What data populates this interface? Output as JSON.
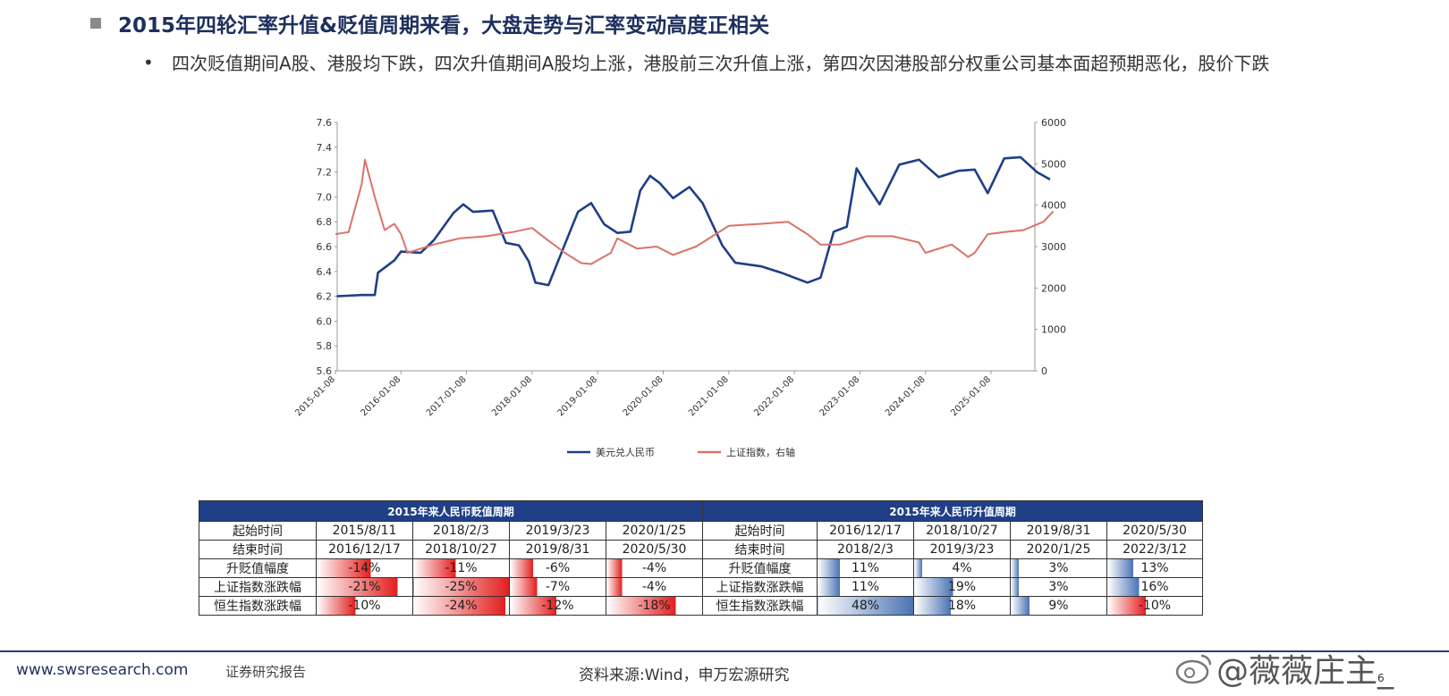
{
  "header": {
    "title": "2015年四轮汇率升值&贬值周期来看，大盘走势与汇率变动高度正相关",
    "bullet": "四次贬值期间A股、港股均下跌，四次升值期间A股均上涨，港股前三次升值上涨，第四次因港股部分权重公司基本面超预期恶化，股价下跌"
  },
  "chart_data": {
    "type": "line",
    "x_tick_labels": [
      "2015-01-08",
      "2016-01-08",
      "2017-01-08",
      "2018-01-08",
      "2019-01-08",
      "2020-01-08",
      "2021-01-08",
      "2022-01-08",
      "2023-01-08",
      "2024-01-08",
      "2025-01-08"
    ],
    "y_left": {
      "min": 5.6,
      "max": 7.6,
      "ticks": [
        "5.6",
        "5.8",
        "6.0",
        "6.2",
        "6.4",
        "6.6",
        "6.8",
        "7.0",
        "7.2",
        "7.4",
        "7.6"
      ]
    },
    "y_right": {
      "min": 0,
      "max": 6000,
      "ticks": [
        "0",
        "1000",
        "2000",
        "3000",
        "4000",
        "5000",
        "6000"
      ]
    },
    "legend_position": "bottom",
    "series": [
      {
        "name": "美元兑人民币",
        "color": "#1f3f86",
        "axis": "left",
        "x": [
          2015.02,
          2015.4,
          2015.6,
          2015.65,
          2015.9,
          2016.0,
          2016.3,
          2016.5,
          2016.8,
          2016.95,
          2017.1,
          2017.4,
          2017.6,
          2017.8,
          2017.95,
          2018.05,
          2018.25,
          2018.5,
          2018.7,
          2018.9,
          2019.1,
          2019.3,
          2019.5,
          2019.65,
          2019.8,
          2019.95,
          2020.15,
          2020.4,
          2020.6,
          2020.9,
          2021.1,
          2021.5,
          2021.8,
          2022.0,
          2022.2,
          2022.4,
          2022.6,
          2022.8,
          2022.95,
          2023.1,
          2023.3,
          2023.6,
          2023.9,
          2024.2,
          2024.5,
          2024.75,
          2024.95,
          2025.2,
          2025.45,
          2025.7,
          2025.9
        ],
        "y": [
          6.2,
          6.21,
          6.21,
          6.39,
          6.49,
          6.56,
          6.55,
          6.65,
          6.87,
          6.94,
          6.88,
          6.89,
          6.63,
          6.61,
          6.48,
          6.31,
          6.29,
          6.62,
          6.88,
          6.95,
          6.78,
          6.71,
          6.72,
          7.05,
          7.17,
          7.11,
          6.99,
          7.08,
          6.95,
          6.61,
          6.47,
          6.44,
          6.39,
          6.35,
          6.31,
          6.35,
          6.72,
          6.76,
          7.23,
          7.1,
          6.94,
          7.26,
          7.3,
          7.16,
          7.21,
          7.22,
          7.03,
          7.31,
          7.32,
          7.2,
          7.14
        ]
      },
      {
        "name": "上证指数，右轴",
        "color": "#d9736b",
        "axis": "right",
        "x": [
          2015.0,
          2015.2,
          2015.4,
          2015.45,
          2015.6,
          2015.75,
          2015.9,
          2016.0,
          2016.1,
          2016.3,
          2016.5,
          2016.9,
          2017.3,
          2017.7,
          2018.0,
          2018.2,
          2018.5,
          2018.75,
          2018.9,
          2019.2,
          2019.3,
          2019.6,
          2019.9,
          2020.15,
          2020.5,
          2020.8,
          2021.0,
          2021.5,
          2021.9,
          2022.2,
          2022.4,
          2022.7,
          2022.9,
          2023.1,
          2023.5,
          2023.9,
          2024.0,
          2024.4,
          2024.65,
          2024.75,
          2024.95,
          2025.2,
          2025.5,
          2025.8,
          2025.95
        ],
        "y": [
          3300,
          3350,
          4500,
          5100,
          4200,
          3400,
          3550,
          3300,
          2850,
          2950,
          3050,
          3200,
          3250,
          3350,
          3450,
          3200,
          2850,
          2600,
          2580,
          2850,
          3200,
          2950,
          3000,
          2800,
          3000,
          3300,
          3500,
          3550,
          3600,
          3300,
          3050,
          3050,
          3150,
          3250,
          3250,
          3100,
          2850,
          3050,
          2750,
          2850,
          3300,
          3350,
          3400,
          3600,
          3850
        ]
      }
    ]
  },
  "table": {
    "depreciation": {
      "title": "2015年来人民币贬值周期",
      "rows": [
        {
          "label": "起始时间",
          "values": [
            "2015/8/11",
            "2018/2/3",
            "2019/3/23",
            "2020/1/25"
          ]
        },
        {
          "label": "结束时间",
          "values": [
            "2016/12/17",
            "2018/10/27",
            "2019/8/31",
            "2020/5/30"
          ]
        },
        {
          "label": "升贬值幅度",
          "values": [
            "-14%",
            "-11%",
            "-6%",
            "-4%"
          ],
          "levels": [
            14,
            11,
            6,
            4
          ]
        },
        {
          "label": "上证指数涨跌幅",
          "values": [
            "-21%",
            "-25%",
            "-7%",
            "-4%"
          ],
          "levels": [
            21,
            25,
            7,
            4
          ]
        },
        {
          "label": "恒生指数涨跌幅",
          "values": [
            "-10%",
            "-24%",
            "-12%",
            "-18%"
          ],
          "levels": [
            10,
            24,
            12,
            18
          ]
        }
      ]
    },
    "appreciation": {
      "title": "2015年来人民币升值周期",
      "rows": [
        {
          "label": "起始时间",
          "values": [
            "2016/12/17",
            "2018/10/27",
            "2019/8/31",
            "2020/5/30"
          ]
        },
        {
          "label": "结束时间",
          "values": [
            "2018/2/3",
            "2019/3/23",
            "2020/1/25",
            "2022/3/12"
          ]
        },
        {
          "label": "升贬值幅度",
          "values": [
            "11%",
            "4%",
            "3%",
            "13%"
          ],
          "levels": [
            11,
            4,
            3,
            13
          ]
        },
        {
          "label": "上证指数涨跌幅",
          "values": [
            "11%",
            "19%",
            "3%",
            "16%"
          ],
          "levels": [
            11,
            19,
            3,
            16
          ]
        },
        {
          "label": "恒生指数涨跌幅",
          "values": [
            "48%",
            "18%",
            "9%",
            "-10%"
          ],
          "levels": [
            48,
            18,
            9,
            -10
          ]
        }
      ]
    },
    "colors": {
      "header": "#1f3f86",
      "negative": "#e31e1e",
      "positive": "#4a73b5"
    }
  },
  "footer": {
    "url": "www.swsresearch.com",
    "label": "证券研究报告",
    "source": "资料来源:Wind，申万宏源研究",
    "page": "6",
    "watermark": "@薇薇庄主_"
  }
}
